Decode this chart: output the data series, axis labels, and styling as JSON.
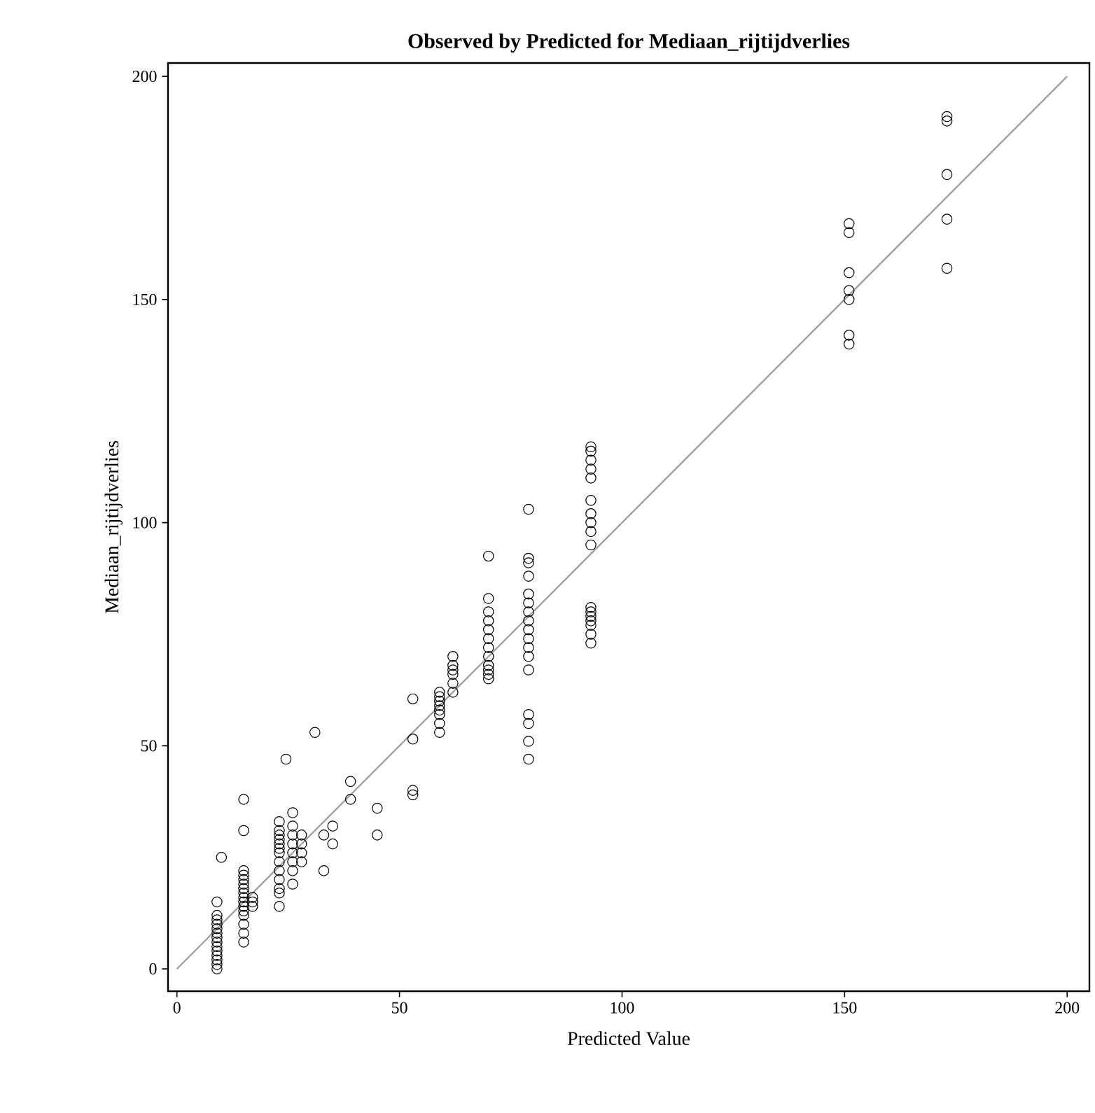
{
  "chart_data": {
    "type": "scatter",
    "title": "Observed by Predicted for Mediaan_rijtijdverlies",
    "xlabel": "Predicted Value",
    "ylabel": "Mediaan_rijtijdverlies",
    "xlim": [
      -2,
      205
    ],
    "ylim": [
      -5,
      203
    ],
    "xticks": [
      0,
      50,
      100,
      150,
      200
    ],
    "yticks": [
      0,
      50,
      100,
      150,
      200
    ],
    "grid": false,
    "series": [
      {
        "marker": "circle",
        "color": "#000000",
        "x": [
          9,
          9,
          9,
          9,
          9,
          9,
          9,
          9,
          9,
          9,
          9,
          9,
          9,
          9,
          10,
          15,
          15,
          15,
          15,
          15,
          15,
          15,
          15,
          15,
          15,
          15,
          15,
          15,
          15,
          15,
          15,
          17,
          17,
          17,
          23,
          23,
          23,
          23,
          23,
          23,
          23,
          23,
          23,
          23,
          23,
          23,
          23,
          24.5,
          26,
          26,
          26,
          26,
          26,
          26,
          26,
          26,
          28,
          28,
          28,
          28,
          31,
          33,
          33,
          35,
          35,
          39,
          39,
          45,
          45,
          53,
          53,
          53,
          53,
          59,
          59,
          59,
          59,
          59,
          59,
          59,
          59,
          62,
          62,
          62,
          62,
          62,
          62,
          70,
          70,
          70,
          70,
          70,
          70,
          70,
          70,
          70,
          70,
          70,
          70,
          79,
          79,
          79,
          79,
          79,
          79,
          79,
          79,
          79,
          79,
          79,
          79,
          79,
          79,
          79,
          79,
          79,
          93,
          93,
          93,
          93,
          93,
          93,
          93,
          93,
          93,
          93,
          93,
          93,
          93,
          93,
          93,
          93,
          93,
          151,
          151,
          151,
          151,
          151,
          151,
          151,
          173,
          173,
          173,
          173,
          173
        ],
        "values": [
          0,
          1,
          2,
          3,
          4,
          5,
          6,
          7,
          8,
          9,
          10,
          11,
          12,
          15,
          25,
          6,
          8,
          10,
          12,
          13,
          14,
          15,
          16,
          17,
          18,
          19,
          20,
          21,
          22,
          31,
          38,
          14,
          15,
          16,
          14,
          17,
          18,
          20,
          22,
          24,
          26,
          27,
          28,
          29,
          30,
          31,
          33,
          47,
          19,
          22,
          24,
          26,
          28,
          30,
          32,
          35,
          24,
          26,
          28,
          30,
          53,
          22,
          30,
          28,
          32,
          38,
          42,
          30,
          36,
          39,
          40,
          51.5,
          60.5,
          53,
          55,
          57,
          58,
          59,
          60,
          61,
          62,
          62,
          64,
          66,
          67,
          68,
          70,
          65,
          66,
          67,
          68,
          70,
          72,
          74,
          76,
          78,
          80,
          83,
          92.5,
          47,
          51,
          55,
          57,
          67,
          70,
          72,
          74,
          76,
          78,
          80,
          82,
          84,
          88,
          91,
          92,
          103,
          73,
          75,
          77,
          78,
          79,
          80,
          81,
          95,
          98,
          100,
          102,
          105,
          110,
          112,
          114,
          116,
          117,
          140,
          142,
          150,
          152,
          156,
          165,
          167,
          157,
          168,
          178,
          190,
          191
        ]
      },
      {
        "type": "line",
        "color": "#a0a0a0",
        "x": [
          0,
          200
        ],
        "values": [
          0,
          200
        ]
      }
    ]
  }
}
